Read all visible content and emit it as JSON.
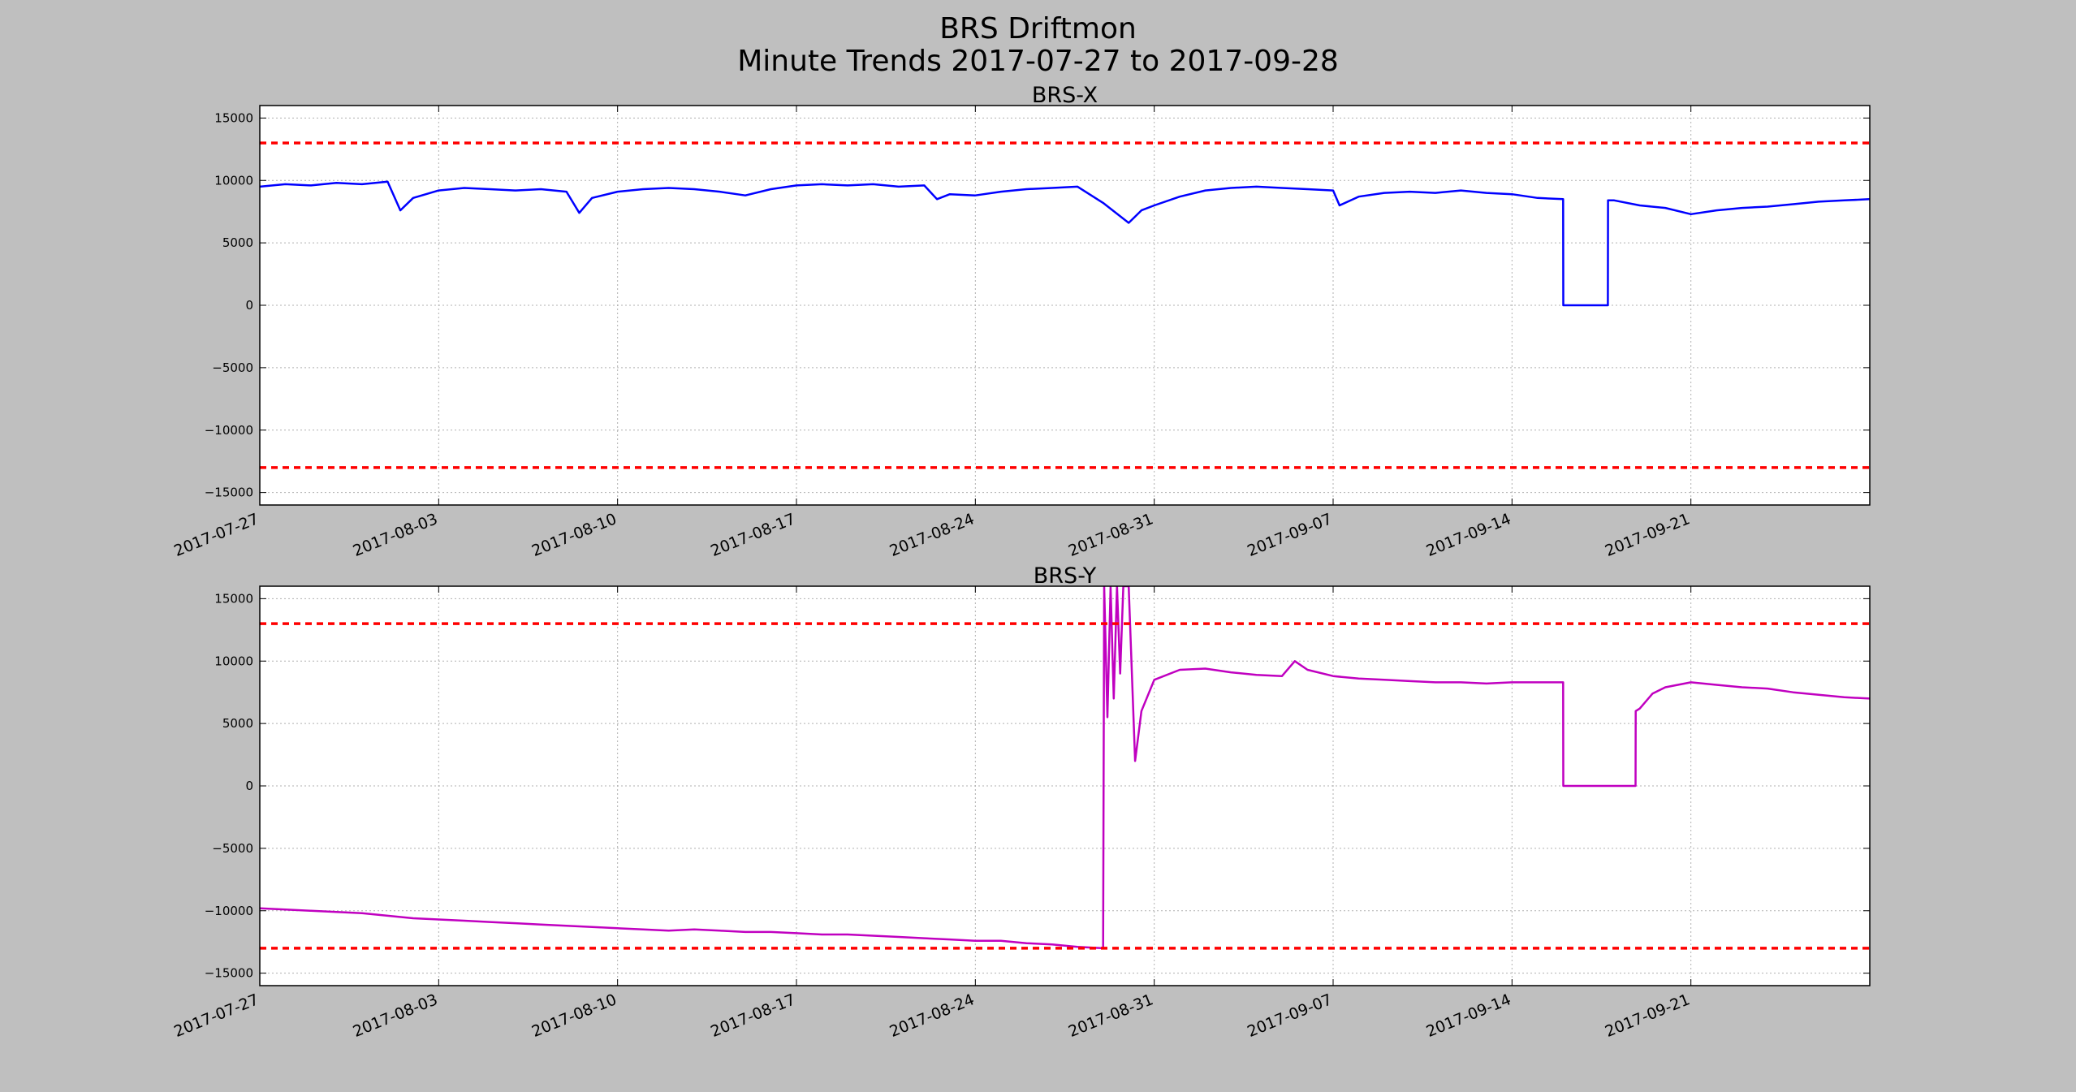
{
  "figure": {
    "title_line1": "BRS Driftmon",
    "title_line2": "Minute Trends 2017-07-27  to 2017-09-28"
  },
  "colors": {
    "figure_background": "#bfbfbf",
    "axes_background": "#ffffff",
    "threshold_line": "#ff0000",
    "grid": "#b0b0b0"
  },
  "chart_data": [
    {
      "type": "line",
      "title": "BRS-X",
      "xlabel": "",
      "ylabel": "",
      "x_axis": "date",
      "xlim": [
        "2017-07-27",
        "2017-09-28"
      ],
      "ylim": [
        -16000,
        16000
      ],
      "x_ticks": [
        "2017-07-27",
        "2017-08-03",
        "2017-08-10",
        "2017-08-17",
        "2017-08-24",
        "2017-08-31",
        "2017-09-07",
        "2017-09-14",
        "2017-09-21"
      ],
      "y_ticks": [
        -15000,
        -10000,
        -5000,
        0,
        5000,
        10000,
        15000
      ],
      "grid": true,
      "thresholds": [
        13000,
        -13000
      ],
      "series": [
        {
          "color": "#0000ff",
          "points": [
            [
              "2017-07-27",
              9500
            ],
            [
              "2017-07-28",
              9700
            ],
            [
              "2017-07-29",
              9600
            ],
            [
              "2017-07-30",
              9800
            ],
            [
              "2017-07-31",
              9700
            ],
            [
              "2017-08-01",
              9900
            ],
            [
              "2017-08-01T12:00",
              7600
            ],
            [
              "2017-08-02",
              8600
            ],
            [
              "2017-08-03",
              9200
            ],
            [
              "2017-08-04",
              9400
            ],
            [
              "2017-08-05",
              9300
            ],
            [
              "2017-08-06",
              9200
            ],
            [
              "2017-08-07",
              9300
            ],
            [
              "2017-08-08",
              9100
            ],
            [
              "2017-08-08T12:00",
              7400
            ],
            [
              "2017-08-09",
              8600
            ],
            [
              "2017-08-10",
              9100
            ],
            [
              "2017-08-11",
              9300
            ],
            [
              "2017-08-12",
              9400
            ],
            [
              "2017-08-13",
              9300
            ],
            [
              "2017-08-14",
              9100
            ],
            [
              "2017-08-15",
              8800
            ],
            [
              "2017-08-16",
              9300
            ],
            [
              "2017-08-17",
              9600
            ],
            [
              "2017-08-18",
              9700
            ],
            [
              "2017-08-19",
              9600
            ],
            [
              "2017-08-20",
              9700
            ],
            [
              "2017-08-21",
              9500
            ],
            [
              "2017-08-22",
              9600
            ],
            [
              "2017-08-22T12:00",
              8500
            ],
            [
              "2017-08-23",
              8900
            ],
            [
              "2017-08-24",
              8800
            ],
            [
              "2017-08-25",
              9100
            ],
            [
              "2017-08-26",
              9300
            ],
            [
              "2017-08-27",
              9400
            ],
            [
              "2017-08-28",
              9500
            ],
            [
              "2017-08-29",
              8200
            ],
            [
              "2017-08-30",
              6600
            ],
            [
              "2017-08-30T12:00",
              7600
            ],
            [
              "2017-08-31",
              8000
            ],
            [
              "2017-09-01",
              8700
            ],
            [
              "2017-09-02",
              9200
            ],
            [
              "2017-09-03",
              9400
            ],
            [
              "2017-09-04",
              9500
            ],
            [
              "2017-09-05",
              9400
            ],
            [
              "2017-09-06",
              9300
            ],
            [
              "2017-09-07",
              9200
            ],
            [
              "2017-09-07T06:00",
              8000
            ],
            [
              "2017-09-08",
              8700
            ],
            [
              "2017-09-09",
              9000
            ],
            [
              "2017-09-10",
              9100
            ],
            [
              "2017-09-11",
              9000
            ],
            [
              "2017-09-12",
              9200
            ],
            [
              "2017-09-13",
              9000
            ],
            [
              "2017-09-14",
              8900
            ],
            [
              "2017-09-15",
              8600
            ],
            [
              "2017-09-16",
              8500
            ],
            [
              "2017-09-16T00:10",
              0
            ],
            [
              "2017-09-17T18:00",
              0
            ],
            [
              "2017-09-17T18:10",
              8400
            ],
            [
              "2017-09-18",
              8400
            ],
            [
              "2017-09-19",
              8000
            ],
            [
              "2017-09-20",
              7800
            ],
            [
              "2017-09-21",
              7300
            ],
            [
              "2017-09-22",
              7600
            ],
            [
              "2017-09-23",
              7800
            ],
            [
              "2017-09-24",
              7900
            ],
            [
              "2017-09-25",
              8100
            ],
            [
              "2017-09-26",
              8300
            ],
            [
              "2017-09-27",
              8400
            ],
            [
              "2017-09-28",
              8500
            ]
          ]
        }
      ]
    },
    {
      "type": "line",
      "title": "BRS-Y",
      "xlabel": "",
      "ylabel": "",
      "x_axis": "date",
      "xlim": [
        "2017-07-27",
        "2017-09-28"
      ],
      "ylim": [
        -16000,
        16000
      ],
      "x_ticks": [
        "2017-07-27",
        "2017-08-03",
        "2017-08-10",
        "2017-08-17",
        "2017-08-24",
        "2017-08-31",
        "2017-09-07",
        "2017-09-14",
        "2017-09-21"
      ],
      "y_ticks": [
        -15000,
        -10000,
        -5000,
        0,
        5000,
        10000,
        15000
      ],
      "grid": true,
      "thresholds": [
        13000,
        -13000
      ],
      "series": [
        {
          "color": "#c000c0",
          "points": [
            [
              "2017-07-27",
              -9800
            ],
            [
              "2017-07-28",
              -9900
            ],
            [
              "2017-07-29",
              -10000
            ],
            [
              "2017-07-30",
              -10100
            ],
            [
              "2017-07-31",
              -10200
            ],
            [
              "2017-08-01",
              -10400
            ],
            [
              "2017-08-02",
              -10600
            ],
            [
              "2017-08-03",
              -10700
            ],
            [
              "2017-08-04",
              -10800
            ],
            [
              "2017-08-05",
              -10900
            ],
            [
              "2017-08-06",
              -11000
            ],
            [
              "2017-08-07",
              -11100
            ],
            [
              "2017-08-08",
              -11200
            ],
            [
              "2017-08-09",
              -11300
            ],
            [
              "2017-08-10",
              -11400
            ],
            [
              "2017-08-11",
              -11500
            ],
            [
              "2017-08-12",
              -11600
            ],
            [
              "2017-08-13",
              -11500
            ],
            [
              "2017-08-14",
              -11600
            ],
            [
              "2017-08-15",
              -11700
            ],
            [
              "2017-08-16",
              -11700
            ],
            [
              "2017-08-17",
              -11800
            ],
            [
              "2017-08-18",
              -11900
            ],
            [
              "2017-08-19",
              -11900
            ],
            [
              "2017-08-20",
              -12000
            ],
            [
              "2017-08-21",
              -12100
            ],
            [
              "2017-08-22",
              -12200
            ],
            [
              "2017-08-23",
              -12300
            ],
            [
              "2017-08-24",
              -12400
            ],
            [
              "2017-08-25",
              -12400
            ],
            [
              "2017-08-26",
              -12600
            ],
            [
              "2017-08-27",
              -12700
            ],
            [
              "2017-08-28",
              -12900
            ],
            [
              "2017-08-29",
              -13000
            ],
            [
              "2017-08-29T01:00",
              16000
            ],
            [
              "2017-08-29T04:00",
              5500
            ],
            [
              "2017-08-29T07:00",
              16000
            ],
            [
              "2017-08-29T10:00",
              7000
            ],
            [
              "2017-08-29T13:00",
              16000
            ],
            [
              "2017-08-29T16:00",
              9000
            ],
            [
              "2017-08-29T19:00",
              16000
            ],
            [
              "2017-08-30",
              16000
            ],
            [
              "2017-08-30T06:00",
              2000
            ],
            [
              "2017-08-30T12:00",
              6000
            ],
            [
              "2017-08-31",
              8500
            ],
            [
              "2017-09-01",
              9300
            ],
            [
              "2017-09-02",
              9400
            ],
            [
              "2017-09-03",
              9100
            ],
            [
              "2017-09-04",
              8900
            ],
            [
              "2017-09-05",
              8800
            ],
            [
              "2017-09-05T12:00",
              10000
            ],
            [
              "2017-09-06",
              9300
            ],
            [
              "2017-09-07",
              8800
            ],
            [
              "2017-09-08",
              8600
            ],
            [
              "2017-09-09",
              8500
            ],
            [
              "2017-09-10",
              8400
            ],
            [
              "2017-09-11",
              8300
            ],
            [
              "2017-09-12",
              8300
            ],
            [
              "2017-09-13",
              8200
            ],
            [
              "2017-09-14",
              8300
            ],
            [
              "2017-09-15",
              8300
            ],
            [
              "2017-09-16",
              8300
            ],
            [
              "2017-09-16T00:10",
              0
            ],
            [
              "2017-09-18T20:00",
              0
            ],
            [
              "2017-09-18T20:10",
              6000
            ],
            [
              "2017-09-19",
              6200
            ],
            [
              "2017-09-19T12:00",
              7400
            ],
            [
              "2017-09-20",
              7900
            ],
            [
              "2017-09-21",
              8300
            ],
            [
              "2017-09-22",
              8100
            ],
            [
              "2017-09-23",
              7900
            ],
            [
              "2017-09-24",
              7800
            ],
            [
              "2017-09-25",
              7500
            ],
            [
              "2017-09-26",
              7300
            ],
            [
              "2017-09-27",
              7100
            ],
            [
              "2017-09-28",
              7000
            ]
          ]
        }
      ]
    }
  ]
}
